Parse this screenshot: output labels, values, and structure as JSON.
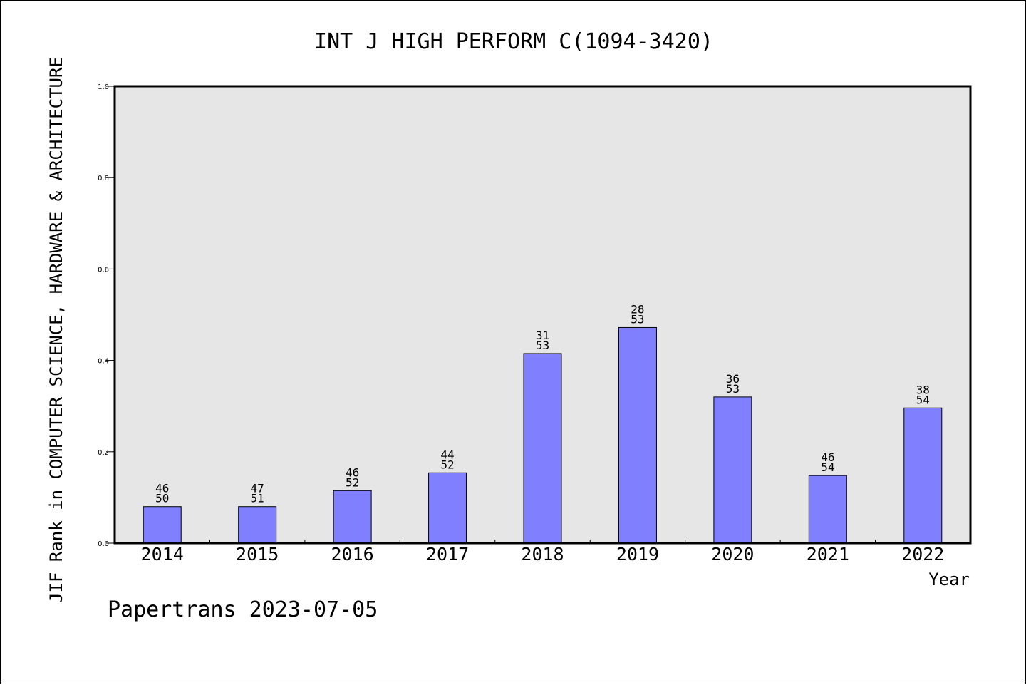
{
  "chart_data": {
    "type": "bar",
    "title": "INT J HIGH PERFORM C(1094-3420)",
    "xlabel": "Year",
    "ylabel": "JIF Rank in COMPUTER SCIENCE, HARDWARE & ARCHITECTURE",
    "ylim": [
      0,
      1.0
    ],
    "yticks": [
      "0.0",
      "0.2",
      "0.4",
      "0.6",
      "0.8",
      "1.0"
    ],
    "yticks_values": [
      0.0,
      0.2,
      0.4,
      0.6,
      0.8,
      1.0
    ],
    "grid": false,
    "categories": [
      "2014",
      "2015",
      "2016",
      "2017",
      "2018",
      "2019",
      "2020",
      "2021",
      "2022"
    ],
    "values": [
      0.08,
      0.08,
      0.115,
      0.154,
      0.415,
      0.472,
      0.32,
      0.148,
      0.296
    ],
    "labels_top": [
      "46",
      "47",
      "46",
      "44",
      "31",
      "28",
      "36",
      "46",
      "38"
    ],
    "labels_bottom": [
      "50",
      "51",
      "52",
      "52",
      "53",
      "53",
      "53",
      "54",
      "54"
    ],
    "bar_color": "#8080ff",
    "plot_background": "#e6e6e6"
  },
  "footer": "Papertrans 2023-07-05"
}
